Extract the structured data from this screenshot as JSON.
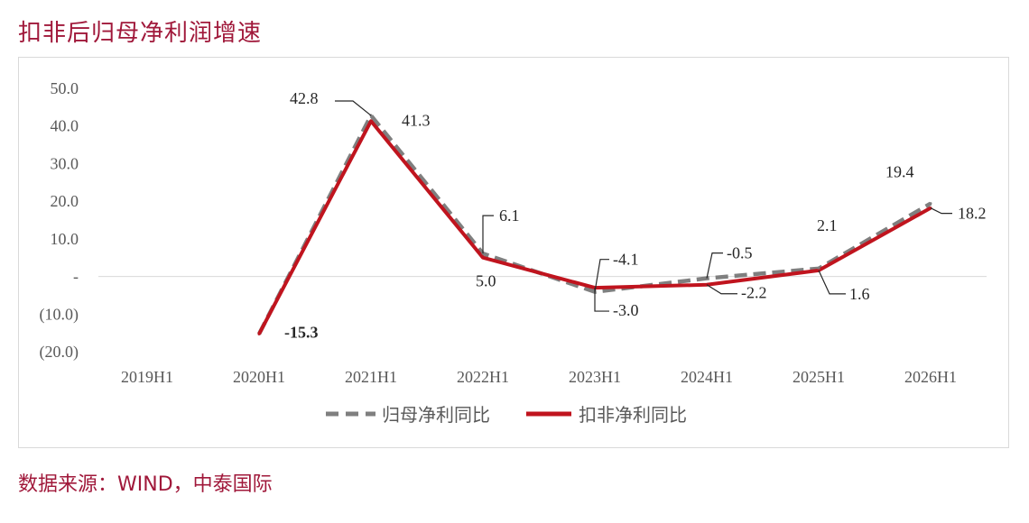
{
  "title": "扣非后归母净利润增速",
  "source": "数据来源：WIND，中泰国际",
  "chart_data": {
    "type": "line",
    "categories": [
      "2019H1",
      "2020H1",
      "2021H1",
      "2022H1",
      "2023H1",
      "2024H1",
      "2025H1",
      "2026H1"
    ],
    "yticks": [
      50,
      40,
      30,
      20,
      10,
      0,
      -10,
      -20
    ],
    "ytick_labels": [
      "50.0",
      "40.0",
      "30.0",
      "20.0",
      "10.0",
      "-",
      "(10.0)",
      "(20.0)"
    ],
    "ylim": [
      -20,
      50
    ],
    "series": [
      {
        "name": "归母净利同比",
        "color": "#7f7f7f",
        "style": "dashed",
        "values": [
          null,
          -15.3,
          42.8,
          6.1,
          -4.1,
          -0.5,
          2.1,
          19.4
        ],
        "labels": [
          null,
          null,
          "42.8",
          "6.1",
          "-4.1",
          "-0.5",
          "2.1",
          "19.4"
        ]
      },
      {
        "name": "扣非净利同比",
        "color": "#c0141e",
        "style": "solid",
        "values": [
          null,
          -15.3,
          41.3,
          5.0,
          -3.0,
          -2.2,
          1.6,
          18.2
        ],
        "labels": [
          null,
          "-15.3",
          "41.3",
          "5.0",
          "-3.0",
          "-2.2",
          "1.6",
          "18.2"
        ]
      }
    ],
    "legend": "bottom"
  }
}
